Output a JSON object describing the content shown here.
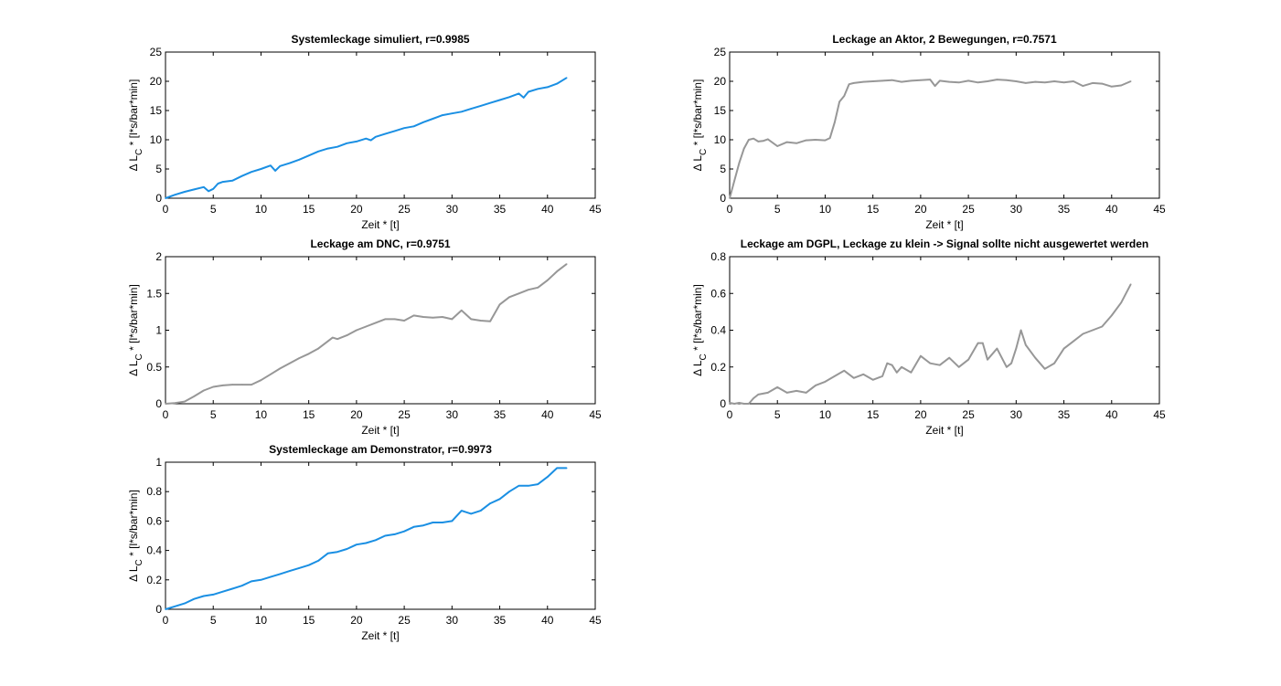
{
  "colors": {
    "blue": "#1a8fe3",
    "gray": "#979797"
  },
  "charts": [
    {
      "title": "Systemleckage simuliert, r=0.9985",
      "xlabel": "Zeit * [t]",
      "ylabel": "Δ L_C * [l*s/bar*min]",
      "ylabel_parts": [
        "Δ L",
        "C",
        " * [l*s/bar*min]"
      ]
    },
    {
      "title": "Leckage an Aktor, 2 Bewegungen, r=0.7571",
      "xlabel": "Zeit * [t]",
      "ylabel": "Δ L_C * [l*s/bar*min]",
      "ylabel_parts": [
        "Δ L",
        "C",
        " * [l*s/bar*min]"
      ]
    },
    {
      "title": "Leckage am DNC, r=0.9751",
      "xlabel": "Zeit * [t]",
      "ylabel": "Δ L_C * [l*s/bar*min]",
      "ylabel_parts": [
        "Δ L",
        "C",
        " * [l*s/bar*min]"
      ]
    },
    {
      "title": "Leckage am DGPL, Leckage zu klein -> Signal sollte nicht ausgewertet werden",
      "xlabel": "Zeit * [t]",
      "ylabel": "Δ L_C * [l*s/bar*min]",
      "ylabel_parts": [
        "Δ L",
        "C",
        " * [l*s/bar*min]"
      ]
    },
    {
      "title": "Systemleckage am Demonstrator, r=0.9973",
      "xlabel": "Zeit * [t]",
      "ylabel": "Δ L_C * [l*s/bar*min]",
      "ylabel_parts": [
        "Δ L",
        "C",
        " * [l*s/bar*min]"
      ]
    }
  ],
  "chart_data": [
    {
      "type": "line",
      "title": "Systemleckage simuliert, r=0.9985",
      "xlabel": "Zeit * [t]",
      "ylabel": "Δ L_C * [l*s/bar*min]",
      "xlim": [
        0,
        45
      ],
      "ylim": [
        0,
        25
      ],
      "xticks": [
        0,
        5,
        10,
        15,
        20,
        25,
        30,
        35,
        40,
        45
      ],
      "yticks": [
        0,
        5,
        10,
        15,
        20,
        25
      ],
      "color": "blue",
      "x": [
        0,
        1,
        2,
        3,
        4,
        4.5,
        5,
        5.5,
        6,
        7,
        8,
        9,
        10,
        11,
        11.5,
        12,
        13,
        14,
        15,
        16,
        17,
        18,
        19,
        20,
        21,
        21.5,
        22,
        23,
        24,
        25,
        26,
        27,
        28,
        29,
        30,
        31,
        32,
        33,
        34,
        35,
        36,
        37,
        37.5,
        38,
        39,
        40,
        41,
        42
      ],
      "y": [
        0,
        0.6,
        1.1,
        1.5,
        1.9,
        1.2,
        1.6,
        2.5,
        2.8,
        3.0,
        3.8,
        4.5,
        5.0,
        5.6,
        4.7,
        5.5,
        6.0,
        6.6,
        7.3,
        8.0,
        8.5,
        8.8,
        9.4,
        9.7,
        10.2,
        9.9,
        10.5,
        11.0,
        11.5,
        12.0,
        12.3,
        13.0,
        13.6,
        14.2,
        14.5,
        14.8,
        15.3,
        15.8,
        16.3,
        16.8,
        17.3,
        17.9,
        17.2,
        18.2,
        18.7,
        19.0,
        19.6,
        20.6
      ]
    },
    {
      "type": "line",
      "title": "Leckage an Aktor, 2 Bewegungen, r=0.7571",
      "xlabel": "Zeit * [t]",
      "ylabel": "Δ L_C * [l*s/bar*min]",
      "xlim": [
        0,
        45
      ],
      "ylim": [
        0,
        25
      ],
      "xticks": [
        0,
        5,
        10,
        15,
        20,
        25,
        30,
        35,
        40,
        45
      ],
      "yticks": [
        0,
        5,
        10,
        15,
        20,
        25
      ],
      "color": "gray",
      "x": [
        0,
        0.5,
        1,
        1.5,
        2,
        2.5,
        3,
        3.5,
        4,
        5,
        6,
        7,
        8,
        9,
        10,
        10.5,
        11,
        11.5,
        12,
        12.5,
        13,
        14,
        15,
        16,
        17,
        18,
        19,
        20,
        21,
        21.5,
        22,
        23,
        24,
        25,
        26,
        27,
        28,
        29,
        30,
        31,
        32,
        33,
        34,
        35,
        36,
        37,
        38,
        39,
        40,
        41,
        42
      ],
      "y": [
        0,
        3.0,
        6.0,
        8.5,
        10.0,
        10.2,
        9.7,
        9.8,
        10.1,
        8.9,
        9.6,
        9.4,
        9.9,
        10.0,
        9.9,
        10.3,
        13.0,
        16.5,
        17.5,
        19.5,
        19.7,
        19.9,
        20.0,
        20.1,
        20.2,
        19.9,
        20.1,
        20.2,
        20.3,
        19.2,
        20.1,
        19.9,
        19.8,
        20.1,
        19.8,
        20.0,
        20.3,
        20.2,
        20.0,
        19.7,
        19.9,
        19.8,
        20.0,
        19.8,
        20.0,
        19.2,
        19.7,
        19.6,
        19.1,
        19.3,
        20.0
      ]
    },
    {
      "type": "line",
      "title": "Leckage am DNC, r=0.9751",
      "xlabel": "Zeit * [t]",
      "ylabel": "Δ L_C * [l*s/bar*min]",
      "xlim": [
        0,
        45
      ],
      "ylim": [
        0,
        2
      ],
      "xticks": [
        0,
        5,
        10,
        15,
        20,
        25,
        30,
        35,
        40,
        45
      ],
      "yticks": [
        0,
        0.5,
        1,
        1.5,
        2
      ],
      "color": "gray",
      "x": [
        0,
        1,
        2,
        3,
        4,
        5,
        6,
        7,
        8,
        9,
        10,
        11,
        12,
        13,
        14,
        15,
        16,
        17,
        17.5,
        18,
        19,
        20,
        21,
        22,
        23,
        24,
        25,
        26,
        27,
        28,
        29,
        30,
        31,
        32,
        33,
        34,
        35,
        36,
        37,
        38,
        39,
        40,
        41,
        42
      ],
      "y": [
        0,
        0.01,
        0.03,
        0.1,
        0.18,
        0.23,
        0.25,
        0.26,
        0.26,
        0.26,
        0.32,
        0.4,
        0.48,
        0.55,
        0.62,
        0.68,
        0.75,
        0.85,
        0.9,
        0.88,
        0.93,
        1.0,
        1.05,
        1.1,
        1.15,
        1.15,
        1.13,
        1.2,
        1.18,
        1.17,
        1.18,
        1.15,
        1.27,
        1.15,
        1.13,
        1.12,
        1.35,
        1.45,
        1.5,
        1.55,
        1.58,
        1.68,
        1.8,
        1.9
      ]
    },
    {
      "type": "line",
      "title": "Leckage am DGPL, Leckage zu klein -> Signal sollte nicht ausgewertet werden",
      "xlabel": "Zeit * [t]",
      "ylabel": "Δ L_C * [l*s/bar*min]",
      "xlim": [
        0,
        45
      ],
      "ylim": [
        0,
        0.8
      ],
      "xticks": [
        0,
        5,
        10,
        15,
        20,
        25,
        30,
        35,
        40,
        45
      ],
      "yticks": [
        0,
        0.2,
        0.4,
        0.6,
        0.8
      ],
      "color": "gray",
      "x": [
        0,
        0.5,
        1,
        1.5,
        2,
        2.5,
        3,
        4,
        5,
        6,
        7,
        8,
        9,
        10,
        11,
        12,
        13,
        14,
        15,
        16,
        16.5,
        17,
        17.5,
        18,
        19,
        20,
        21,
        22,
        23,
        24,
        25,
        26,
        26.5,
        27,
        28,
        29,
        29.5,
        30,
        30.5,
        31,
        32,
        33,
        34,
        35,
        36,
        37,
        38,
        39,
        40,
        41,
        42
      ],
      "y": [
        0.005,
        0,
        0.005,
        0,
        0,
        0.03,
        0.05,
        0.06,
        0.09,
        0.06,
        0.07,
        0.06,
        0.1,
        0.12,
        0.15,
        0.18,
        0.14,
        0.16,
        0.13,
        0.15,
        0.22,
        0.21,
        0.17,
        0.2,
        0.17,
        0.26,
        0.22,
        0.21,
        0.25,
        0.2,
        0.24,
        0.33,
        0.33,
        0.24,
        0.3,
        0.2,
        0.22,
        0.3,
        0.4,
        0.32,
        0.25,
        0.19,
        0.22,
        0.3,
        0.34,
        0.38,
        0.4,
        0.42,
        0.48,
        0.55,
        0.65
      ]
    },
    {
      "type": "line",
      "title": "Systemleckage am Demonstrator, r=0.9973",
      "xlabel": "Zeit * [t]",
      "ylabel": "Δ L_C * [l*s/bar*min]",
      "xlim": [
        0,
        45
      ],
      "ylim": [
        0,
        1
      ],
      "xticks": [
        0,
        5,
        10,
        15,
        20,
        25,
        30,
        35,
        40,
        45
      ],
      "yticks": [
        0,
        0.2,
        0.4,
        0.6,
        0.8,
        1
      ],
      "color": "blue",
      "x": [
        0,
        1,
        2,
        3,
        4,
        5,
        6,
        7,
        8,
        9,
        10,
        11,
        12,
        13,
        14,
        15,
        16,
        17,
        18,
        19,
        20,
        21,
        22,
        23,
        24,
        25,
        26,
        27,
        28,
        29,
        30,
        31,
        32,
        33,
        34,
        35,
        36,
        37,
        38,
        39,
        40,
        41,
        42
      ],
      "y": [
        0,
        0.02,
        0.04,
        0.07,
        0.09,
        0.1,
        0.12,
        0.14,
        0.16,
        0.19,
        0.2,
        0.22,
        0.24,
        0.26,
        0.28,
        0.3,
        0.33,
        0.38,
        0.39,
        0.41,
        0.44,
        0.45,
        0.47,
        0.5,
        0.51,
        0.53,
        0.56,
        0.57,
        0.59,
        0.59,
        0.6,
        0.67,
        0.65,
        0.67,
        0.72,
        0.75,
        0.8,
        0.84,
        0.84,
        0.85,
        0.9,
        0.96,
        0.96
      ]
    }
  ]
}
